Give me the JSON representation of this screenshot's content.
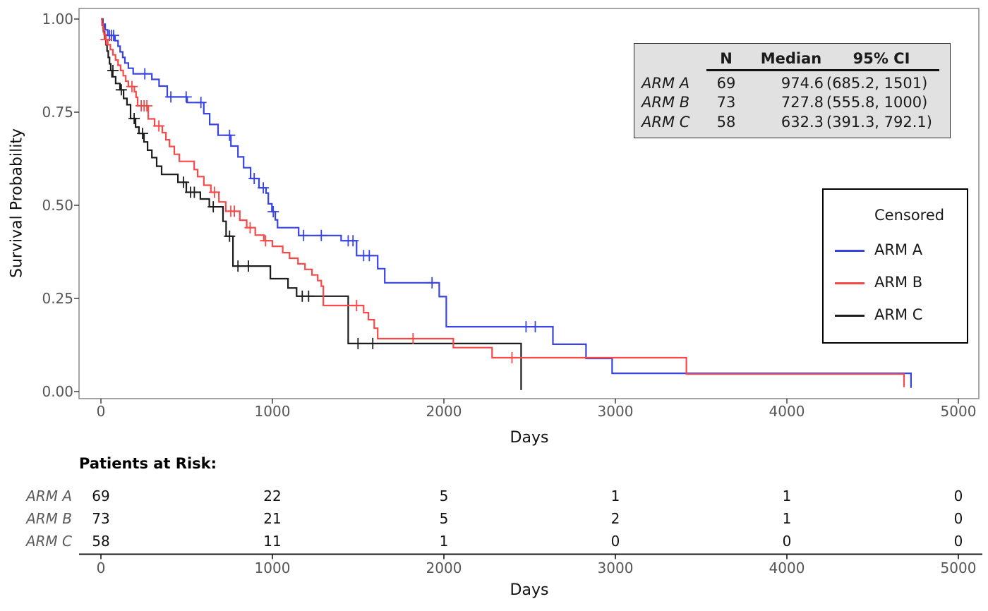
{
  "chart_data": {
    "type": "line",
    "subtype": "kaplan-meier-step",
    "title": "",
    "xlabel": "Days",
    "ylabel": "Survival Probability",
    "xlim": [
      0,
      5000
    ],
    "ylim": [
      0,
      1
    ],
    "grid": false,
    "xticks": [
      0,
      1000,
      2000,
      3000,
      4000,
      5000
    ],
    "yticks": [
      {
        "v": 0.0,
        "label": "0.00"
      },
      {
        "v": 0.25,
        "label": "0.25"
      },
      {
        "v": 0.5,
        "label": "0.50"
      },
      {
        "v": 0.75,
        "label": "0.75"
      },
      {
        "v": 1.0,
        "label": "1.00"
      }
    ],
    "legend": {
      "position": "right-middle",
      "items": [
        {
          "symbol": "plus",
          "color": "#1c1c1c",
          "label": "Censored"
        },
        {
          "symbol": "line",
          "color": "#3843e0",
          "label": "ARM A"
        },
        {
          "symbol": "line",
          "color": "#f94848",
          "label": "ARM B"
        },
        {
          "symbol": "line",
          "color": "#1c1c1c",
          "label": "ARM C"
        }
      ]
    },
    "series": [
      {
        "name": "ARM A",
        "color": "#3843e0",
        "steps": [
          [
            0,
            1
          ],
          [
            12,
            0.986
          ],
          [
            25,
            0.971
          ],
          [
            40,
            0.956
          ],
          [
            82,
            0.942
          ],
          [
            100,
            0.927
          ],
          [
            112,
            0.912
          ],
          [
            127,
            0.897
          ],
          [
            140,
            0.882
          ],
          [
            160,
            0.868
          ],
          [
            188,
            0.853
          ],
          [
            297,
            0.838
          ],
          [
            339,
            0.82
          ],
          [
            387,
            0.791
          ],
          [
            503,
            0.776
          ],
          [
            600,
            0.746
          ],
          [
            634,
            0.717
          ],
          [
            683,
            0.688
          ],
          [
            758,
            0.659
          ],
          [
            799,
            0.63
          ],
          [
            832,
            0.601
          ],
          [
            873,
            0.572
          ],
          [
            922,
            0.547
          ],
          [
            963,
            0.533
          ],
          [
            976,
            0.504
          ],
          [
            997,
            0.483
          ],
          [
            1017,
            0.461
          ],
          [
            1030,
            0.44
          ],
          [
            1153,
            0.419
          ],
          [
            1401,
            0.405
          ],
          [
            1491,
            0.365
          ],
          [
            1614,
            0.33
          ],
          [
            1655,
            0.292
          ],
          [
            1973,
            0.255
          ],
          [
            2014,
            0.174
          ],
          [
            2636,
            0.127
          ],
          [
            2829,
            0.089
          ],
          [
            2981,
            0.049
          ],
          [
            4724,
            0.01
          ]
        ],
        "censored": [
          [
            50,
            0.956
          ],
          [
            62,
            0.956
          ],
          [
            74,
            0.956
          ],
          [
            256,
            0.853
          ],
          [
            408,
            0.791
          ],
          [
            497,
            0.791
          ],
          [
            583,
            0.776
          ],
          [
            750,
            0.688
          ],
          [
            894,
            0.572
          ],
          [
            947,
            0.547
          ],
          [
            1005,
            0.483
          ],
          [
            1182,
            0.419
          ],
          [
            1285,
            0.419
          ],
          [
            1442,
            0.405
          ],
          [
            1470,
            0.405
          ],
          [
            1532,
            0.365
          ],
          [
            1565,
            0.365
          ],
          [
            1931,
            0.292
          ],
          [
            2479,
            0.174
          ],
          [
            2533,
            0.174
          ]
        ]
      },
      {
        "name": "ARM C",
        "color": "#1c1c1c",
        "steps": [
          [
            0,
            1
          ],
          [
            8,
            0.983
          ],
          [
            15,
            0.966
          ],
          [
            22,
            0.948
          ],
          [
            29,
            0.931
          ],
          [
            36,
            0.914
          ],
          [
            43,
            0.897
          ],
          [
            50,
            0.88
          ],
          [
            57,
            0.862
          ],
          [
            64,
            0.845
          ],
          [
            86,
            0.827
          ],
          [
            111,
            0.81
          ],
          [
            132,
            0.787
          ],
          [
            152,
            0.77
          ],
          [
            173,
            0.733
          ],
          [
            202,
            0.71
          ],
          [
            222,
            0.693
          ],
          [
            251,
            0.67
          ],
          [
            272,
            0.648
          ],
          [
            297,
            0.628
          ],
          [
            325,
            0.605
          ],
          [
            354,
            0.583
          ],
          [
            449,
            0.562
          ],
          [
            498,
            0.535
          ],
          [
            580,
            0.517
          ],
          [
            632,
            0.496
          ],
          [
            712,
            0.457
          ],
          [
            730,
            0.417
          ],
          [
            770,
            0.337
          ],
          [
            988,
            0.303
          ],
          [
            1091,
            0.278
          ],
          [
            1141,
            0.256
          ],
          [
            1442,
            0.129
          ],
          [
            2450,
            0.004
          ]
        ],
        "censored": [
          [
            70,
            0.862
          ],
          [
            119,
            0.81
          ],
          [
            194,
            0.733
          ],
          [
            243,
            0.693
          ],
          [
            482,
            0.562
          ],
          [
            523,
            0.535
          ],
          [
            545,
            0.535
          ],
          [
            655,
            0.496
          ],
          [
            750,
            0.417
          ],
          [
            799,
            0.337
          ],
          [
            860,
            0.337
          ],
          [
            1174,
            0.256
          ],
          [
            1211,
            0.256
          ],
          [
            1499,
            0.129
          ],
          [
            1585,
            0.129
          ]
        ]
      },
      {
        "name": "ARM B",
        "color": "#f94848",
        "steps": [
          [
            0,
            1
          ],
          [
            6,
            0.986
          ],
          [
            12,
            0.973
          ],
          [
            18,
            0.959
          ],
          [
            25,
            0.945
          ],
          [
            40,
            0.931
          ],
          [
            55,
            0.918
          ],
          [
            70,
            0.904
          ],
          [
            85,
            0.89
          ],
          [
            100,
            0.876
          ],
          [
            115,
            0.862
          ],
          [
            130,
            0.848
          ],
          [
            145,
            0.833
          ],
          [
            160,
            0.819
          ],
          [
            195,
            0.805
          ],
          [
            205,
            0.79
          ],
          [
            214,
            0.767
          ],
          [
            276,
            0.732
          ],
          [
            313,
            0.713
          ],
          [
            358,
            0.695
          ],
          [
            379,
            0.676
          ],
          [
            400,
            0.658
          ],
          [
            428,
            0.637
          ],
          [
            457,
            0.618
          ],
          [
            544,
            0.596
          ],
          [
            564,
            0.577
          ],
          [
            600,
            0.554
          ],
          [
            641,
            0.535
          ],
          [
            688,
            0.509
          ],
          [
            728,
            0.484
          ],
          [
            810,
            0.46
          ],
          [
            850,
            0.44
          ],
          [
            900,
            0.42
          ],
          [
            950,
            0.405
          ],
          [
            1000,
            0.39
          ],
          [
            1060,
            0.373
          ],
          [
            1100,
            0.358
          ],
          [
            1149,
            0.343
          ],
          [
            1190,
            0.328
          ],
          [
            1231,
            0.313
          ],
          [
            1264,
            0.298
          ],
          [
            1285,
            0.283
          ],
          [
            1297,
            0.231
          ],
          [
            1532,
            0.212
          ],
          [
            1560,
            0.193
          ],
          [
            1594,
            0.17
          ],
          [
            1614,
            0.142
          ],
          [
            2055,
            0.118
          ],
          [
            2281,
            0.091
          ],
          [
            3414,
            0.047
          ],
          [
            4683,
            0.012
          ]
        ],
        "censored": [
          [
            30,
            0.945
          ],
          [
            181,
            0.819
          ],
          [
            235,
            0.767
          ],
          [
            252,
            0.767
          ],
          [
            268,
            0.767
          ],
          [
            338,
            0.713
          ],
          [
            662,
            0.535
          ],
          [
            757,
            0.484
          ],
          [
            778,
            0.484
          ],
          [
            870,
            0.44
          ],
          [
            960,
            0.405
          ],
          [
            1491,
            0.231
          ],
          [
            1820,
            0.142
          ],
          [
            2397,
            0.091
          ]
        ]
      }
    ]
  },
  "stat_table": {
    "headers": [
      "N",
      "Median",
      "95% CI"
    ],
    "rows": [
      {
        "label": "ARM A",
        "n": "69",
        "median": "974.6",
        "ci": "(685.2, 1501)"
      },
      {
        "label": "ARM B",
        "n": "73",
        "median": "727.8",
        "ci": "(555.8, 1000)"
      },
      {
        "label": "ARM C",
        "n": "58",
        "median": "632.3",
        "ci": "(391.3, 792.1)"
      }
    ]
  },
  "risk_table": {
    "title": "Patients at Risk:",
    "xlabel": "Days",
    "times": [
      0,
      1000,
      2000,
      3000,
      4000,
      5000
    ],
    "rows": [
      {
        "label": "ARM A",
        "counts": [
          "69",
          "22",
          "5",
          "1",
          "1",
          "0"
        ]
      },
      {
        "label": "ARM B",
        "counts": [
          "73",
          "21",
          "5",
          "2",
          "1",
          "0"
        ]
      },
      {
        "label": "ARM C",
        "counts": [
          "58",
          "11",
          "1",
          "0",
          "0",
          "0"
        ]
      }
    ]
  },
  "colors": {
    "arm_a": "#3843e0",
    "arm_b": "#f94848",
    "arm_c": "#1c1c1c",
    "panel_border": "#7f7f7f",
    "tick_label": "#565656",
    "stat_table_bg": "#e1e1e1"
  }
}
